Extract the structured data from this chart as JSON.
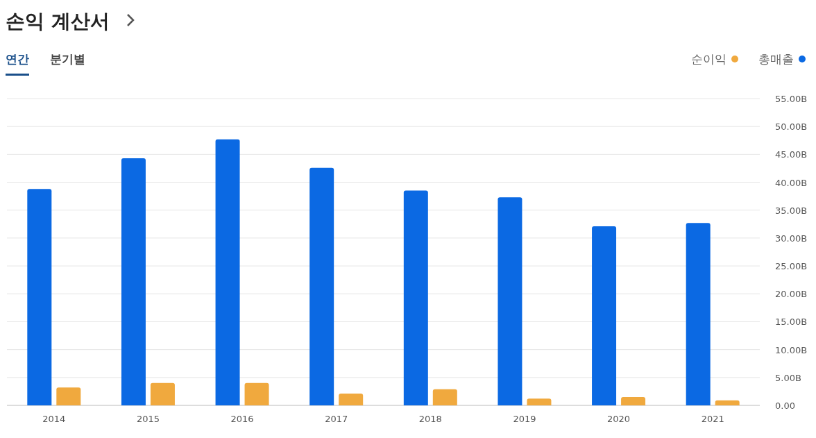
{
  "chart_data": {
    "type": "bar",
    "title": "손익 계산서",
    "annotations": [
      "연간",
      "분기별"
    ],
    "categories": [
      "2014",
      "2015",
      "2016",
      "2017",
      "2018",
      "2019",
      "2020",
      "2021"
    ],
    "series": [
      {
        "name": "총매출",
        "color": "#0b69e3",
        "values": [
          38.8,
          44.3,
          47.7,
          42.6,
          38.5,
          37.3,
          32.1,
          32.7
        ]
      },
      {
        "name": "순이익",
        "color": "#f0a93e",
        "values": [
          3.2,
          4.0,
          4.0,
          2.1,
          2.9,
          1.2,
          1.5,
          0.9
        ]
      }
    ],
    "ylim": [
      0,
      55
    ],
    "yticks": [
      {
        "value": 0,
        "label": "0.00"
      },
      {
        "value": 5,
        "label": "5.00B"
      },
      {
        "value": 10,
        "label": "10.00B"
      },
      {
        "value": 15,
        "label": "15.00B"
      },
      {
        "value": 20,
        "label": "20.00B"
      },
      {
        "value": 25,
        "label": "25.00B"
      },
      {
        "value": 30,
        "label": "30.00B"
      },
      {
        "value": 35,
        "label": "35.00B"
      },
      {
        "value": 40,
        "label": "40.00B"
      },
      {
        "value": 45,
        "label": "45.00B"
      },
      {
        "value": 50,
        "label": "50.00B"
      },
      {
        "value": 55,
        "label": "55.00B"
      }
    ],
    "grid": "y",
    "legend": "top right"
  }
}
